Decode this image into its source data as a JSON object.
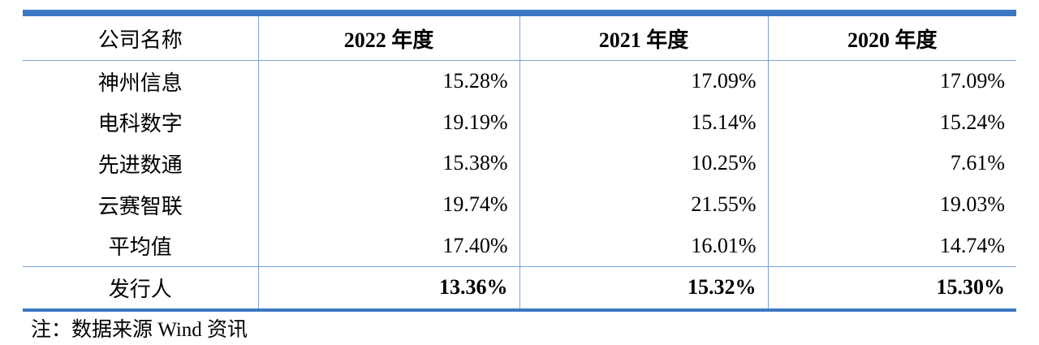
{
  "table": {
    "header": [
      "公司名称",
      "2022 年度",
      "2021 年度",
      "2020 年度"
    ],
    "rows": [
      [
        "神州信息",
        "15.28%",
        "17.09%",
        "17.09%"
      ],
      [
        "电科数字",
        "19.19%",
        "15.14%",
        "15.24%"
      ],
      [
        "先进数通",
        "15.38%",
        "10.25%",
        "7.61%"
      ],
      [
        "云赛智联",
        "19.74%",
        "21.55%",
        "19.03%"
      ],
      [
        "平均值",
        "17.40%",
        "16.01%",
        "14.74%"
      ],
      [
        "发行人",
        "13.36%",
        "15.32%",
        "15.30%"
      ]
    ]
  },
  "note": "注：数据来源 Wind 资讯"
}
